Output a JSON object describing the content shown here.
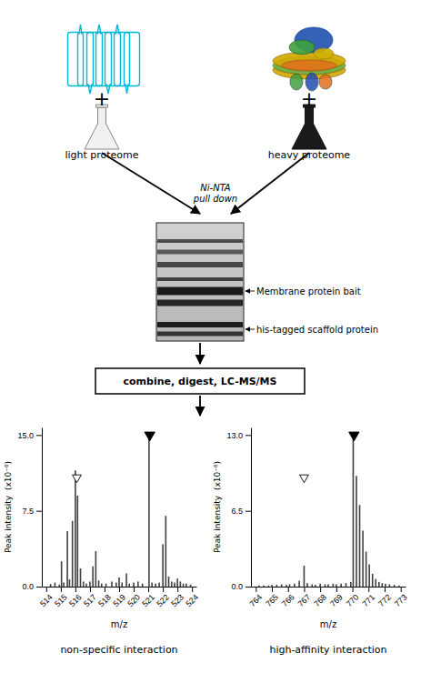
{
  "chart_data": [
    {
      "type": "bar",
      "title": "non-specific interaction",
      "xlabel": "m/z",
      "ylabel": "Peak intensity  (x10⁻⁶)",
      "color": "#404040",
      "grid": false,
      "x": [
        514.3,
        514.6,
        514.9,
        515.05,
        515.2,
        515.45,
        515.6,
        515.8,
        516.0,
        516.15,
        516.35,
        516.55,
        516.75,
        517.0,
        517.2,
        517.4,
        517.6,
        517.8,
        518.1,
        518.5,
        518.8,
        519.0,
        519.2,
        519.5,
        519.7,
        520.0,
        520.3,
        520.6,
        521.05,
        521.25,
        521.5,
        521.75,
        522.0,
        522.2,
        522.4,
        522.6,
        522.8,
        523.0,
        523.2,
        523.4,
        523.6,
        523.9
      ],
      "values": [
        0.25,
        0.4,
        0.2,
        2.5,
        0.4,
        5.5,
        0.7,
        6.5,
        11.5,
        9.0,
        1.8,
        0.5,
        0.3,
        0.5,
        2.0,
        3.5,
        0.6,
        0.3,
        0.3,
        0.5,
        0.4,
        0.9,
        0.4,
        1.3,
        0.3,
        0.4,
        0.5,
        0.3,
        14.8,
        0.4,
        0.3,
        0.4,
        4.2,
        7.0,
        1.0,
        0.5,
        0.4,
        0.8,
        0.5,
        0.3,
        0.3,
        0.2
      ],
      "xlim": [
        513.7,
        524.3
      ],
      "xticks": [
        514,
        515,
        516,
        517,
        518,
        519,
        520,
        521,
        522,
        523,
        524
      ],
      "ylim": [
        0,
        15.75
      ],
      "yticks": [
        {
          "value": 0,
          "label": "0.0"
        },
        7.5,
        {
          "value": 15,
          "label": "15.0"
        }
      ],
      "open_triangle": {
        "x": 516.1,
        "y": 10.8
      },
      "filled_triangle": {
        "x": 521.1,
        "y": 15
      }
    },
    {
      "type": "bar",
      "title": "high-affinity interaction",
      "xlabel": "m/z",
      "ylabel": "Peak intensity  (x10⁻⁶)",
      "color": "#404040",
      "grid": false,
      "x": [
        764.2,
        764.5,
        764.8,
        765.0,
        765.3,
        765.6,
        765.9,
        766.1,
        766.4,
        766.7,
        767.0,
        767.2,
        767.5,
        767.7,
        768.0,
        768.3,
        768.5,
        768.8,
        769.0,
        769.3,
        769.6,
        769.9,
        770.05,
        770.25,
        770.45,
        770.65,
        770.85,
        771.05,
        771.25,
        771.45,
        771.65,
        771.85,
        772.05,
        772.3,
        772.6,
        772.9
      ],
      "values": [
        0.1,
        0.1,
        0.1,
        0.15,
        0.15,
        0.2,
        0.15,
        0.2,
        0.25,
        0.5,
        1.8,
        0.3,
        0.2,
        0.15,
        0.25,
        0.2,
        0.2,
        0.25,
        0.2,
        0.25,
        0.3,
        0.4,
        12.8,
        9.5,
        7.0,
        4.8,
        3.0,
        1.9,
        1.1,
        0.65,
        0.4,
        0.3,
        0.25,
        0.2,
        0.15,
        0.1
      ],
      "xlim": [
        763.7,
        773.3
      ],
      "xticks": [
        764,
        765,
        766,
        767,
        768,
        769,
        770,
        771,
        772,
        773
      ],
      "ylim": [
        0,
        13.65
      ],
      "yticks": [
        {
          "value": 0,
          "label": "0.0"
        },
        6.5,
        {
          "value": 13,
          "label": "13.0"
        }
      ],
      "open_triangle": {
        "x": 767.0,
        "y": 9.36
      },
      "filled_triangle": {
        "x": 770.1,
        "y": 13
      }
    }
  ],
  "annotations": [
    "+",
    "+",
    "light proteome",
    "heavy proteome",
    "Ni-NTA\npull down",
    "Membrane protein bait",
    "his-tagged scaffold protein",
    "combine, digest, LC-MS/MS"
  ]
}
